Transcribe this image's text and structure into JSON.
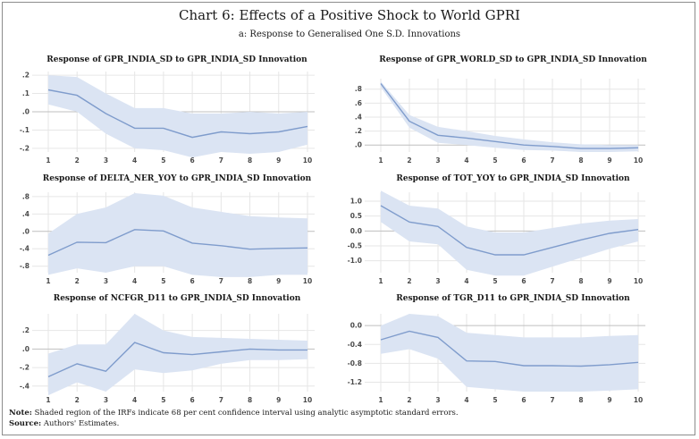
{
  "title": "Chart 6: Effects of a Positive Shock to World GPRI",
  "subtitle": "a: Response to Generalised One S.D. Innovations",
  "note_label": "Note:",
  "note_text": "Shaded region of the IRFs indicate 68 per cent confidence interval using analytic asymptotic standard errors.",
  "source_label": "Source:",
  "source_text": "Authors' Estimates.",
  "colors": {
    "line": "#7f9ccc",
    "band": "#dbe4f3",
    "grid": "#e6e6e6",
    "zero": "#bfbfbf"
  },
  "chart_data": [
    {
      "type": "line",
      "title": "Response of GPR_INDIA_SD to GPR_INDIA_SD Innovation",
      "x": [
        1,
        2,
        3,
        4,
        5,
        6,
        7,
        8,
        9,
        10
      ],
      "ylim": [
        -0.22,
        0.22
      ],
      "yticks": [
        0.2,
        0.1,
        0.0,
        -0.1,
        -0.2
      ],
      "yticklabels": [
        ".2",
        ".1",
        ".0",
        "-.1",
        "-.2"
      ],
      "series": [
        {
          "name": "IRF",
          "values": [
            0.12,
            0.09,
            -0.01,
            -0.09,
            -0.09,
            -0.14,
            -0.11,
            -0.12,
            -0.11,
            -0.08
          ]
        },
        {
          "name": "upper",
          "values": [
            0.2,
            0.19,
            0.1,
            0.02,
            0.02,
            -0.01,
            -0.01,
            0.0,
            -0.01,
            0.0
          ]
        },
        {
          "name": "lower",
          "values": [
            0.04,
            0.0,
            -0.12,
            -0.2,
            -0.21,
            -0.25,
            -0.22,
            -0.23,
            -0.22,
            -0.18
          ]
        }
      ]
    },
    {
      "type": "line",
      "title": "Response of GPR_WORLD_SD to GPR_INDIA_SD Innovation",
      "x": [
        1,
        2,
        3,
        4,
        5,
        6,
        7,
        8,
        9,
        10
      ],
      "ylim": [
        -0.1,
        0.95
      ],
      "yticks": [
        0.8,
        0.6,
        0.4,
        0.2,
        0.0
      ],
      "yticklabels": [
        ".8",
        ".6",
        ".4",
        ".2",
        ".0"
      ],
      "series": [
        {
          "name": "IRF",
          "values": [
            0.88,
            0.34,
            0.14,
            0.1,
            0.05,
            0.0,
            -0.02,
            -0.05,
            -0.05,
            -0.04
          ]
        },
        {
          "name": "upper",
          "values": [
            0.91,
            0.43,
            0.26,
            0.2,
            0.13,
            0.08,
            0.04,
            0.01,
            0.0,
            0.0
          ]
        },
        {
          "name": "lower",
          "values": [
            0.83,
            0.25,
            0.03,
            0.0,
            -0.04,
            -0.07,
            -0.08,
            -0.1,
            -0.1,
            -0.09
          ]
        }
      ]
    },
    {
      "type": "line",
      "title": "Response of DELTA_NER_YOY to GPR_INDIA_SD Innovation",
      "x": [
        1,
        2,
        3,
        4,
        5,
        6,
        7,
        8,
        9,
        10
      ],
      "ylim": [
        -0.95,
        0.9
      ],
      "yticks": [
        0.8,
        0.4,
        0.0,
        -0.4,
        -0.8
      ],
      "yticklabels": [
        ".8",
        ".4",
        ".0",
        "-.4",
        "-.8"
      ],
      "series": [
        {
          "name": "IRF",
          "values": [
            -0.55,
            -0.25,
            -0.26,
            0.04,
            0.01,
            -0.27,
            -0.33,
            -0.41,
            -0.39,
            -0.38
          ]
        },
        {
          "name": "upper",
          "values": [
            -0.05,
            0.4,
            0.55,
            0.88,
            0.82,
            0.55,
            0.45,
            0.35,
            0.32,
            0.3
          ]
        },
        {
          "name": "lower",
          "values": [
            -1.0,
            -0.85,
            -0.95,
            -0.8,
            -0.8,
            -1.0,
            -1.05,
            -1.05,
            -1.0,
            -1.0
          ]
        }
      ]
    },
    {
      "type": "line",
      "title": "Response of TOT_YOY to GPR_INDIA_SD Innovation",
      "x": [
        1,
        2,
        3,
        4,
        5,
        6,
        7,
        8,
        9,
        10
      ],
      "ylim": [
        -1.4,
        1.3
      ],
      "yticks": [
        1.0,
        0.5,
        0.0,
        -0.5,
        -1.0
      ],
      "yticklabels": [
        "1.0",
        "0.5",
        "0.0",
        "-0.5",
        "-1.0"
      ],
      "series": [
        {
          "name": "IRF",
          "values": [
            0.85,
            0.3,
            0.15,
            -0.55,
            -0.8,
            -0.8,
            -0.55,
            -0.3,
            -0.08,
            0.05
          ]
        },
        {
          "name": "upper",
          "values": [
            1.35,
            0.85,
            0.75,
            0.15,
            -0.05,
            -0.05,
            0.1,
            0.25,
            0.35,
            0.4
          ]
        },
        {
          "name": "lower",
          "values": [
            0.3,
            -0.35,
            -0.45,
            -1.3,
            -1.5,
            -1.5,
            -1.2,
            -0.9,
            -0.6,
            -0.35
          ]
        }
      ]
    },
    {
      "type": "line",
      "title": "Response of NCFGR_D11 to GPR_INDIA_SD Innovation",
      "x": [
        1,
        2,
        3,
        4,
        5,
        6,
        7,
        8,
        9,
        10
      ],
      "ylim": [
        -0.46,
        0.38
      ],
      "yticks": [
        0.2,
        0.0,
        -0.2,
        -0.4
      ],
      "yticklabels": [
        ".2",
        ".0",
        "-.2",
        "-.4"
      ],
      "series": [
        {
          "name": "IRF",
          "values": [
            -0.3,
            -0.16,
            -0.24,
            0.07,
            -0.04,
            -0.06,
            -0.03,
            0.0,
            -0.01,
            -0.01
          ]
        },
        {
          "name": "upper",
          "values": [
            -0.05,
            0.05,
            0.05,
            0.38,
            0.2,
            0.13,
            0.12,
            0.11,
            0.1,
            0.09
          ]
        },
        {
          "name": "lower",
          "values": [
            -0.5,
            -0.36,
            -0.46,
            -0.22,
            -0.26,
            -0.23,
            -0.16,
            -0.12,
            -0.12,
            -0.11
          ]
        }
      ]
    },
    {
      "type": "line",
      "title": "Response of TGR_D11 to GPR_INDIA_SD Innovation",
      "x": [
        1,
        2,
        3,
        4,
        5,
        6,
        7,
        8,
        9,
        10
      ],
      "ylim": [
        -1.4,
        0.25
      ],
      "yticks": [
        0.0,
        -0.4,
        -0.8,
        -1.2
      ],
      "yticklabels": [
        "0.0",
        "-0.4",
        "-0.8",
        "-1.2"
      ],
      "series": [
        {
          "name": "IRF",
          "values": [
            -0.3,
            -0.12,
            -0.25,
            -0.75,
            -0.76,
            -0.85,
            -0.85,
            -0.86,
            -0.83,
            -0.78
          ]
        },
        {
          "name": "upper",
          "values": [
            0.0,
            0.25,
            0.2,
            -0.15,
            -0.2,
            -0.25,
            -0.25,
            -0.25,
            -0.22,
            -0.2
          ]
        },
        {
          "name": "lower",
          "values": [
            -0.6,
            -0.5,
            -0.7,
            -1.3,
            -1.35,
            -1.4,
            -1.4,
            -1.4,
            -1.38,
            -1.35
          ]
        }
      ]
    }
  ]
}
